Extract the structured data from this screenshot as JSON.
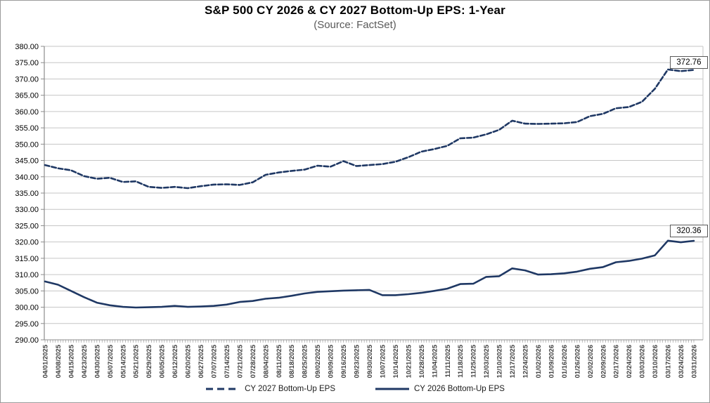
{
  "header": {
    "title": "S&P 500 CY 2026 & CY 2027 Bottom-Up EPS: 1-Year",
    "subtitle": "(Source: FactSet)"
  },
  "colors": {
    "series_line": "#1f3864",
    "gridline": "#c6c6c6",
    "axis": "#8c8c8c",
    "x_label": "#3f3f3f",
    "y_label": "#000000",
    "box_border": "#595959"
  },
  "chart_data": {
    "type": "line",
    "title": "S&P 500 CY 2026 & CY 2027 Bottom-Up EPS: 1-Year",
    "subtitle": "(Source: FactSet)",
    "grid": "horizontal",
    "legend_position": "bottom",
    "ylim": [
      290,
      380
    ],
    "y_ticks": [
      "380.00",
      "375.00",
      "370.00",
      "365.00",
      "360.00",
      "355.00",
      "350.00",
      "345.00",
      "340.00",
      "335.00",
      "330.00",
      "325.00",
      "320.00",
      "315.00",
      "310.00",
      "305.00",
      "300.00",
      "295.00",
      "290.00"
    ],
    "x_tick_labels": [
      "04/01/2025",
      "04/08/2025",
      "04/15/2025",
      "04/23/2025",
      "04/30/2025",
      "05/07/2025",
      "05/14/2025",
      "05/21/2025",
      "05/29/2025",
      "06/05/2025",
      "06/12/2025",
      "06/20/2025",
      "06/27/2025",
      "07/07/2025",
      "07/14/2025",
      "07/21/2025",
      "07/28/2025",
      "08/04/2025",
      "08/11/2025",
      "08/18/2025",
      "08/25/2025",
      "09/02/2025",
      "09/09/2025",
      "09/16/2025",
      "09/23/2025",
      "09/30/2025",
      "10/07/2025",
      "10/14/2025",
      "10/21/2025",
      "10/28/2025",
      "11/04/2025",
      "11/11/2025",
      "11/18/2025",
      "11/25/2025",
      "12/03/2025",
      "12/10/2025",
      "12/17/2025",
      "12/24/2025",
      "01/02/2026",
      "01/09/2026",
      "01/16/2026",
      "01/26/2026",
      "02/02/2026",
      "02/09/2026",
      "02/17/2026",
      "02/24/2026",
      "03/03/2026",
      "03/10/2026",
      "03/17/2026",
      "03/24/2026",
      "03/31/2026"
    ],
    "series": [
      {
        "name": "CY 2027 Bottom-Up EPS",
        "style": "dashed",
        "end_label": "372.76",
        "values": [
          343.6,
          342.6,
          342.0,
          340.2,
          339.4,
          339.7,
          338.4,
          338.6,
          336.9,
          336.6,
          336.9,
          336.5,
          337.1,
          337.6,
          337.7,
          337.5,
          338.3,
          340.6,
          341.3,
          341.8,
          342.2,
          343.4,
          343.1,
          344.8,
          343.3,
          343.6,
          343.9,
          344.6,
          346.0,
          347.7,
          348.5,
          349.5,
          351.8,
          352.0,
          353.0,
          354.4,
          357.2,
          356.3,
          356.2,
          356.3,
          356.4,
          356.8,
          358.6,
          359.3,
          361.0,
          361.4,
          363.0,
          367.0,
          372.9,
          372.4,
          372.76
        ]
      },
      {
        "name": "CY 2026 Bottom-Up EPS",
        "style": "solid",
        "end_label": "320.36",
        "values": [
          307.9,
          306.9,
          305.0,
          303.1,
          301.4,
          300.6,
          300.1,
          299.9,
          300.0,
          300.1,
          300.4,
          300.1,
          300.2,
          300.4,
          300.8,
          301.6,
          301.9,
          302.6,
          302.9,
          303.5,
          304.2,
          304.7,
          304.9,
          305.1,
          305.2,
          305.3,
          303.7,
          303.7,
          304.0,
          304.4,
          305.0,
          305.7,
          307.1,
          307.2,
          309.3,
          309.5,
          311.9,
          311.3,
          310.0,
          310.1,
          310.4,
          310.9,
          311.8,
          312.3,
          313.8,
          314.2,
          314.9,
          315.9,
          320.4,
          319.9,
          320.36
        ]
      }
    ]
  }
}
